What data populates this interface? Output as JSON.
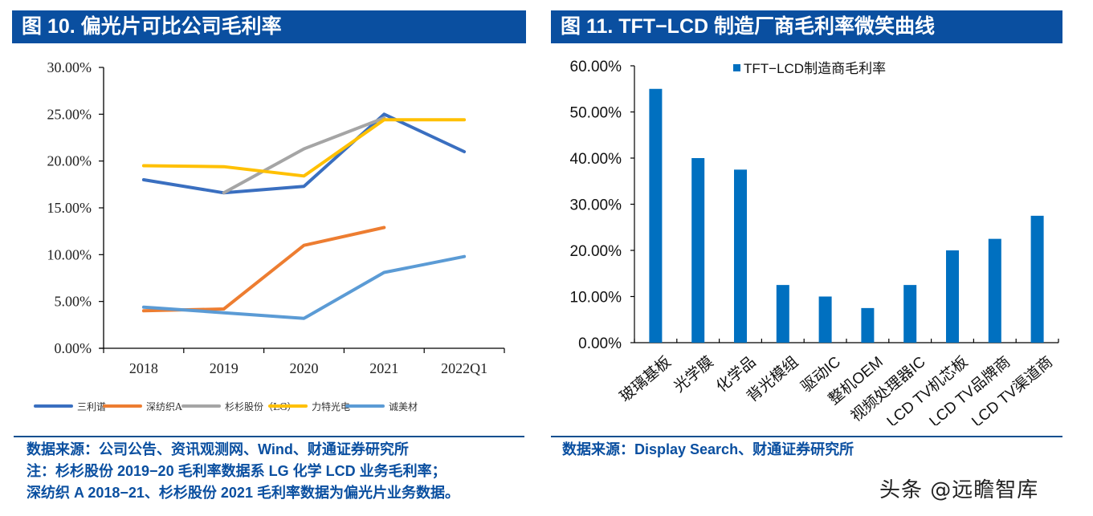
{
  "figures": {
    "left": {
      "title": "图 10. 偏光片可比公司毛利率",
      "notes": [
        "数据来源：公司公告、资讯观测网、Wind、财通证券研究所",
        "注：杉杉股份 2019−20 毛利率数据系 LG 化学 LCD 业务毛利率；",
        "深纺织 A 2018−21、杉杉股份 2021 毛利率数据为偏光片业务数据。"
      ]
    },
    "right": {
      "title": "图 11. TFT−LCD 制造厂商毛利率微笑曲线",
      "notes": [
        "数据来源：Display Search、财通证券研究所"
      ]
    }
  },
  "watermark": "头条 @远瞻智库",
  "chart_data": [
    {
      "type": "line",
      "title": "偏光片可比公司毛利率",
      "categories": [
        "2018",
        "2019",
        "2020",
        "2021",
        "2022Q1"
      ],
      "ylim": [
        0,
        30
      ],
      "yticks": [
        0,
        5,
        10,
        15,
        20,
        25,
        30
      ],
      "ytick_labels": [
        "0.00%",
        "5.00%",
        "10.00%",
        "15.00%",
        "20.00%",
        "25.00%",
        "30.00%"
      ],
      "xlabel": "",
      "ylabel": "",
      "unit": "%",
      "grid": false,
      "legend": "bottom",
      "series": [
        {
          "name": "三利谱",
          "color": "#3a6fc0",
          "values": [
            18.0,
            16.6,
            17.3,
            25.0,
            21.0
          ]
        },
        {
          "name": "深纺织A",
          "color": "#ed7d31",
          "values": [
            4.0,
            4.2,
            11.0,
            12.9,
            null
          ]
        },
        {
          "name": "杉杉股份（LG）",
          "color": "#a5a5a5",
          "values": [
            null,
            16.6,
            21.3,
            24.6,
            null
          ]
        },
        {
          "name": "力特光电",
          "color": "#ffc000",
          "values": [
            19.5,
            19.4,
            18.4,
            24.4,
            24.4
          ]
        },
        {
          "name": "诚美材",
          "color": "#5b9bd5",
          "values": [
            4.4,
            3.8,
            3.2,
            8.1,
            9.8
          ]
        }
      ]
    },
    {
      "type": "bar",
      "title": "TFT−LCD 制造厂商毛利率微笑曲线",
      "categories": [
        "玻璃基板",
        "光学膜",
        "化学品",
        "背光模组",
        "驱动IC",
        "整机OEM",
        "视频处理器IC",
        "LCD TV机芯板",
        "LCD TV品牌商",
        "LCD TV渠道商"
      ],
      "ylim": [
        0,
        60
      ],
      "yticks": [
        0,
        10,
        20,
        30,
        40,
        50,
        60
      ],
      "ytick_labels": [
        "0.00%",
        "10.00%",
        "20.00%",
        "30.00%",
        "40.00%",
        "50.00%",
        "60.00%"
      ],
      "xlabel": "",
      "ylabel": "",
      "unit": "%",
      "grid": false,
      "legend": "top-right",
      "series": [
        {
          "name": "TFT−LCD制造商毛利率",
          "color": "#0070c0",
          "values": [
            55.0,
            40.0,
            37.5,
            12.5,
            10.0,
            7.5,
            12.5,
            20.0,
            22.5,
            27.5
          ]
        }
      ]
    }
  ]
}
